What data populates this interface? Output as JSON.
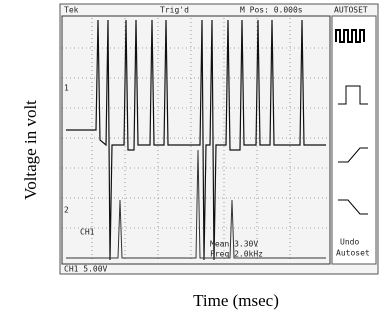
{
  "y_label": "Voltage in volt",
  "x_label": "Time (msec)",
  "screen": {
    "header": {
      "brand": "Tek",
      "trigger": "Trig'd",
      "position": "M Pos: 0.000s",
      "menu": "AUTOSET"
    },
    "markers": [
      "1",
      "2"
    ],
    "readouts": [
      "CH1",
      "Mean 3.30V",
      "Freq 2.0kHz"
    ],
    "menu_button": [
      "Undo",
      "Autoset"
    ],
    "footer": "CH1 5.00V"
  }
}
